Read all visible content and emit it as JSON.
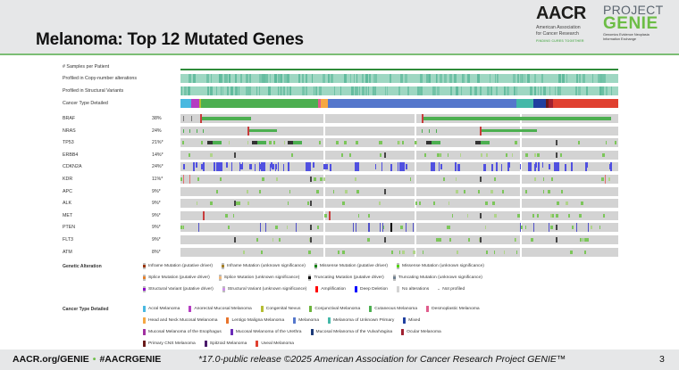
{
  "slide": {
    "title": "Melanoma: Top 12 Mutated Genes",
    "page_number": "3"
  },
  "logos": {
    "aacr": {
      "mark": "AACR",
      "line1": "American Association",
      "line2": "for Cancer Research",
      "tagline": "FINDING CURES TOGETHER"
    },
    "genie": {
      "project": "PROJECT",
      "word": "GENIE",
      "line1": "Genomics Evidence Neoplasia",
      "line2": "Information Exchange"
    }
  },
  "oncoprint": {
    "clinical_tracks": [
      {
        "label": "# Samples per Patient"
      },
      {
        "label": "Profiled in Copy-number alterations"
      },
      {
        "label": "Profiled in Structural Variants"
      },
      {
        "label": "Cancer Type Detailed"
      }
    ],
    "genes": [
      {
        "name": "BRAF",
        "pct": "38%"
      },
      {
        "name": "NRAS",
        "pct": "24%"
      },
      {
        "name": "TP53",
        "pct": "21%*"
      },
      {
        "name": "ERBB4",
        "pct": "14%*"
      },
      {
        "name": "CDKN2A",
        "pct": "24%*"
      },
      {
        "name": "KDR",
        "pct": "11%*"
      },
      {
        "name": "APC",
        "pct": "9%*"
      },
      {
        "name": "ALK",
        "pct": "9%*"
      },
      {
        "name": "MET",
        "pct": "9%*"
      },
      {
        "name": "PTEN",
        "pct": "9%*"
      },
      {
        "name": "FLT3",
        "pct": "9%*"
      },
      {
        "name": "ATM",
        "pct": "8%*"
      }
    ],
    "cancer_type_segments": [
      {
        "type": "Acral Melanoma",
        "share": 0.025
      },
      {
        "type": "Anorectal Mucosal Melanoma",
        "share": 0.018
      },
      {
        "type": "Congenital Nevus",
        "share": 0.004
      },
      {
        "type": "Cutaneous Melanoma",
        "share": 0.268
      },
      {
        "type": "Desmoplastic Melanoma",
        "share": 0.006
      },
      {
        "type": "Head and Neck Mucosal Melanoma",
        "share": 0.016
      },
      {
        "type": "Melanoma",
        "share": 0.43
      },
      {
        "type": "Melanoma of Unknown Primary",
        "share": 0.04
      },
      {
        "type": "Mixed",
        "share": 0.028
      },
      {
        "type": "Primary CNS Melanoma",
        "share": 0.005
      },
      {
        "type": "Ocular Melanoma",
        "share": 0.012
      },
      {
        "type": "Uveal Melanoma",
        "share": 0.148
      }
    ]
  },
  "legend": {
    "genetic_alteration": {
      "title": "Genetic Alteration",
      "rows": [
        [
          {
            "label": "Inframe Mutation (putative driver)",
            "color": "#993404"
          },
          {
            "label": "Inframe Mutation (unknown significance)",
            "color": "#a68028"
          },
          {
            "label": "Missense Mutation (putative driver)",
            "color": "#008000"
          },
          {
            "label": "Missense Mutation (unknown significance)",
            "color": "#53d400"
          }
        ],
        [
          {
            "label": "Splice Mutation (putative driver)",
            "color": "#e5802b"
          },
          {
            "label": "Splice Mutation (unknown significance)",
            "color": "#f0b87b"
          },
          {
            "label": "Truncating Mutation (putative driver)",
            "color": "#000000"
          },
          {
            "label": "Truncating Mutation (unknown significance)",
            "color": "#708090"
          }
        ],
        [
          {
            "label": "Structural Variant (putative driver)",
            "color": "#8b00c9"
          },
          {
            "label": "Structural Variant (unknown significance)",
            "color": "#ce92e8"
          },
          {
            "label": "Amplification",
            "color": "#ff0000"
          },
          {
            "label": "Deep Deletion",
            "color": "#0000ff"
          },
          {
            "label": "No alterations",
            "color": "#d3d3d3"
          },
          {
            "label": "Not profiled",
            "color": "#ffffff"
          }
        ]
      ]
    },
    "cancer_type": {
      "title": "Cancer Type Detailed",
      "rows": [
        [
          {
            "label": "Acral Melanoma",
            "color": "#48b8e0"
          },
          {
            "label": "Anorectal Mucosal Melanoma",
            "color": "#b43cc2"
          },
          {
            "label": "Congenital Nevus",
            "color": "#b5bd32"
          },
          {
            "label": "Conjunctival Melanoma",
            "color": "#6cb33c"
          },
          {
            "label": "Cutaneous Melanoma",
            "color": "#4caf50"
          },
          {
            "label": "Desmoplastic Melanoma",
            "color": "#e05c8c"
          }
        ],
        [
          {
            "label": "Head and Neck Mucosal Melanoma",
            "color": "#f5a742"
          },
          {
            "label": "Lentigo Maligna Melanoma",
            "color": "#e8742c"
          },
          {
            "label": "Melanoma",
            "color": "#5577cc"
          },
          {
            "label": "Melanoma of Unknown Primary",
            "color": "#44b8a8"
          },
          {
            "label": "Mixed",
            "color": "#2040a0"
          }
        ],
        [
          {
            "label": "Mucosal Melanoma of the Esophagus",
            "color": "#a030a0"
          },
          {
            "label": "Mucosal Melanoma of the Urethra",
            "color": "#6a2ab8"
          },
          {
            "label": "Mucosal Melanoma of the Vulva/Vagina",
            "color": "#1c3a78"
          },
          {
            "label": "Ocular Melanoma",
            "color": "#a02030"
          }
        ],
        [
          {
            "label": "Primary CNS Melanoma",
            "color": "#6a1a1a"
          },
          {
            "label": "Spitzoid Melanoma",
            "color": "#4a1a6a"
          },
          {
            "label": "Uveal Melanoma",
            "color": "#e04030"
          }
        ]
      ]
    }
  },
  "footer": {
    "left_link1": "AACR.org/GENIE",
    "separator": "•",
    "left_link2": "#AACRGENIE",
    "release_note": "*17.0-public release ©2025 American Association for Cancer Research Project GENIE™"
  },
  "colors": {
    "brand_green": "#6cbd45",
    "header_bg": "#e6e7e8",
    "no_alteration": "#d3d3d3",
    "profiled_teal": "#9ed7c2",
    "profiled_dark": "#5cb89a"
  }
}
